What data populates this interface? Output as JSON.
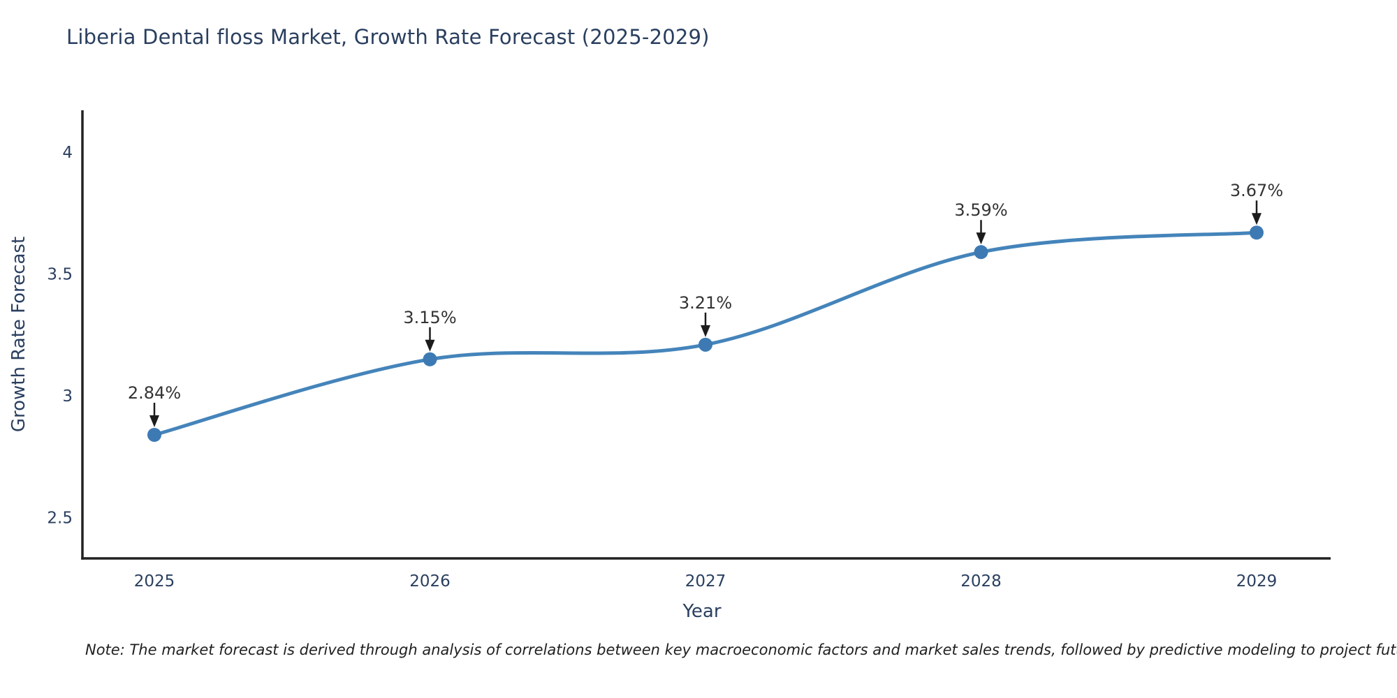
{
  "chart_data": {
    "type": "line",
    "title": "Liberia Dental floss Market, Growth Rate Forecast (2025-2029)",
    "categories": [
      "2025",
      "2026",
      "2027",
      "2028",
      "2029"
    ],
    "series": [
      {
        "name": "Growth Rate Forecast",
        "values": [
          2.84,
          3.15,
          3.21,
          3.59,
          3.67
        ]
      }
    ],
    "point_labels": [
      "2.84%",
      "3.15%",
      "3.21%",
      "3.59%",
      "3.67%"
    ],
    "xlabel": "Year",
    "ylabel": "Growth Rate Forecast",
    "ylim": [
      2.333,
      4.172
    ],
    "yticks": [
      2.5,
      3,
      3.5,
      4
    ],
    "ytick_labels": [
      "2.5",
      "3",
      "3.5",
      "4"
    ],
    "line_shape": "spline",
    "grid": false,
    "legend_position": "none",
    "annotations_have_arrows": true,
    "colors": {
      "line": "#4484ba",
      "marker": "#3d7ab4",
      "axis": "#222222",
      "tick_text": "#2a3f5f",
      "annotation_text": "#333333",
      "arrow": "#1c1c1c",
      "title_text": "#2a3f5f",
      "background": "#ffffff"
    }
  },
  "note": "Note: The market forecast is derived through analysis of correlations between key macroeconomic factors and market sales trends, followed by predictive modeling to project future sales"
}
